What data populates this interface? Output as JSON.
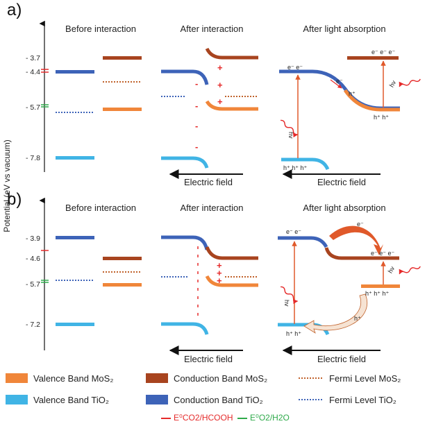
{
  "panel_a": {
    "label": "a)",
    "titles": {
      "before": "Before interaction",
      "after": "After interaction",
      "light": "After light absorption"
    },
    "ticks": [
      "- 3.7",
      "- 4.4",
      "- 5.7",
      "- 7.8"
    ],
    "electric_field": "Electric field",
    "electrons_tio2": "e⁻ e⁻",
    "electrons_mos2": "e⁻ e⁻ e⁻",
    "electron_single": "e⁻",
    "hole_single": "h⁺",
    "holes_mos2": "h⁺ h⁺",
    "holes_tio2": "h⁺ h⁺ h⁺",
    "hv": "hv"
  },
  "panel_b": {
    "label": "b)",
    "titles": {
      "before": "Before interaction",
      "after": "After interaction",
      "light": "After light absorption"
    },
    "ticks": [
      "- 3.9",
      "- 4.6",
      "- 5.7",
      "- 7.2"
    ],
    "electric_field": "Electric field",
    "electrons_tio2": "e⁻ e⁻",
    "electrons_mos2": "e⁻ e⁻ e⁻",
    "electron_single": "e⁻",
    "hole_single": "h⁺",
    "holes_mos2": "h⁺ h⁺ h⁺",
    "holes_tio2": "h⁺ h⁺",
    "hv": "hv"
  },
  "y_axis_label": "Potential (eV vs vacuum)",
  "legend": {
    "vb_mos2": "Valence Band MoS₂",
    "cb_mos2": "Conduction Band MoS₂",
    "fermi_mos2": "Fermi Level MoS₂",
    "vb_tio2": "Valence Band TiO₂",
    "cb_tio2": "Conduction Band TiO₂",
    "fermi_tio2": "Fermi Level TiO₂",
    "e_co2": "E⁰CO2/HCOOH",
    "e_o2": "E⁰O2/H2O"
  },
  "colors": {
    "vb_mos2": "#f0863a",
    "cb_mos2": "#a8441f",
    "vb_tio2": "#40b4e5",
    "cb_tio2": "#3d63b8",
    "fermi_mos2": "#c0612a",
    "fermi_tio2": "#3d63b8",
    "red": "#e52a2a",
    "green": "#2eaa4a"
  }
}
